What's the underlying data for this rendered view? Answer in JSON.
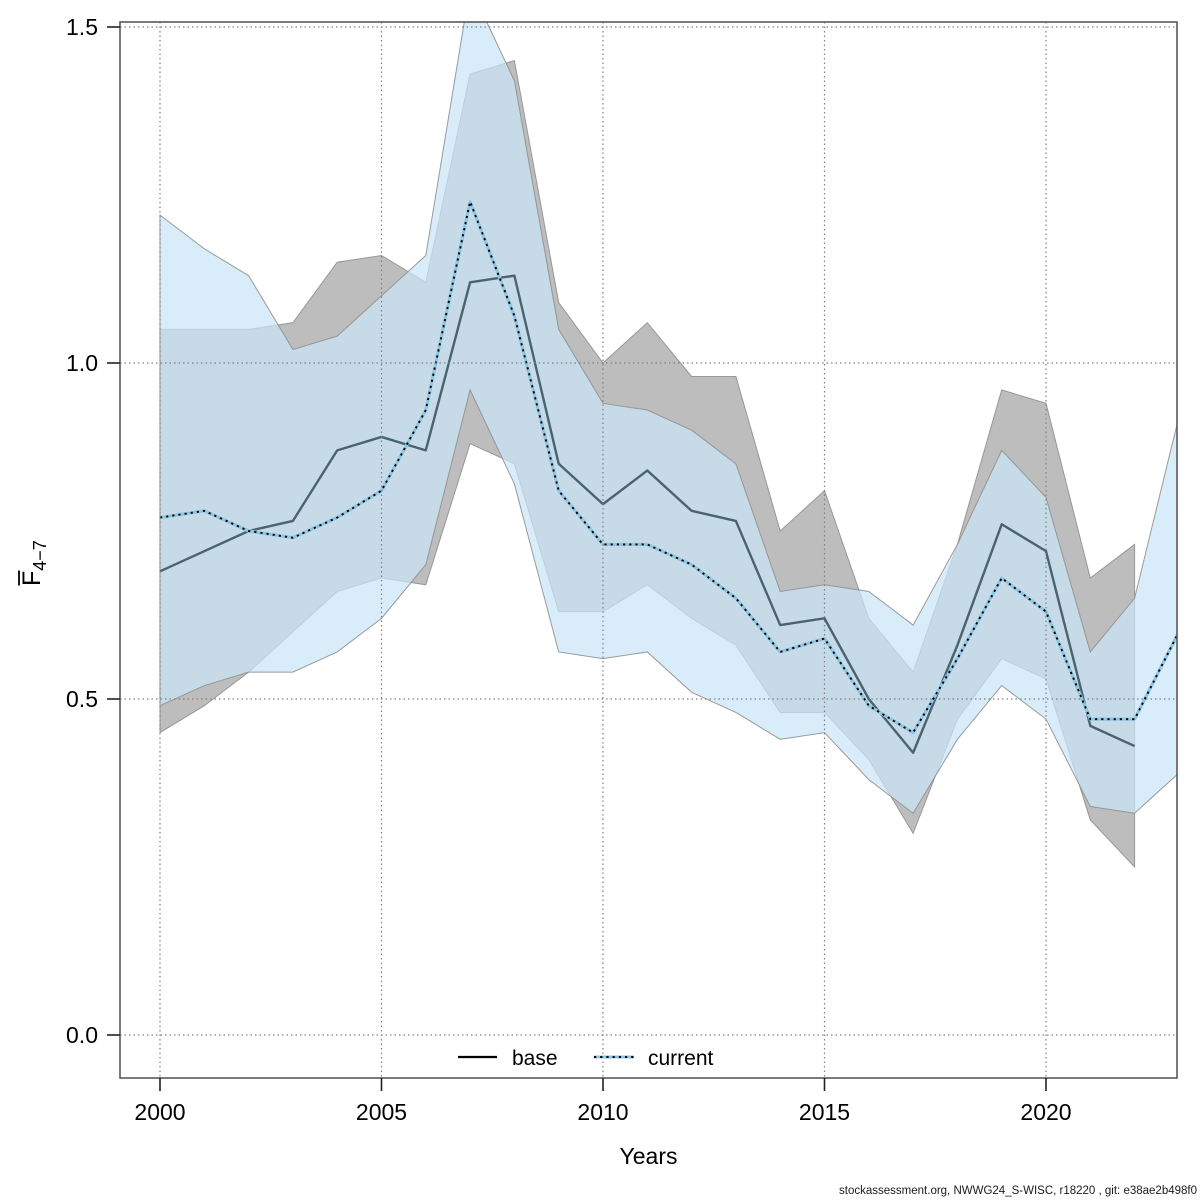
{
  "chart_data": {
    "type": "line",
    "title": "",
    "xlabel": "Years",
    "ylabel": {
      "base_char": "F",
      "overline": true,
      "subscript": "4−7"
    },
    "xlim": [
      2000,
      2023
    ],
    "ylim": [
      0.0,
      1.5
    ],
    "grid": true,
    "x_ticks": [
      2000,
      2005,
      2010,
      2015,
      2020
    ],
    "y_ticks": [
      0.0,
      0.5,
      1.0,
      1.5
    ],
    "y_tick_labels": [
      "0.0",
      "0.5",
      "1.0",
      "1.5"
    ],
    "x": [
      2000,
      2001,
      2002,
      2003,
      2004,
      2005,
      2006,
      2007,
      2008,
      2009,
      2010,
      2011,
      2012,
      2013,
      2014,
      2015,
      2016,
      2017,
      2018,
      2019,
      2020,
      2021,
      2022,
      2023
    ],
    "series": [
      {
        "name": "base",
        "line_style": "solid",
        "line_color": "#4a646f",
        "legend_line_color": "#000000",
        "band_color": "#bdbdbd",
        "band_opacity": 1.0,
        "values": [
          0.69,
          0.72,
          0.75,
          0.765,
          0.87,
          0.89,
          0.87,
          1.12,
          1.13,
          0.85,
          0.79,
          0.84,
          0.78,
          0.765,
          0.61,
          0.62,
          0.5,
          0.42,
          0.58,
          0.76,
          0.72,
          0.46,
          0.43,
          null
        ],
        "lower": [
          0.45,
          0.49,
          0.54,
          0.6,
          0.66,
          0.68,
          0.67,
          0.88,
          0.85,
          0.63,
          0.63,
          0.67,
          0.62,
          0.58,
          0.48,
          0.48,
          0.41,
          0.3,
          0.47,
          0.56,
          0.53,
          0.32,
          0.25,
          null
        ],
        "upper": [
          1.05,
          1.05,
          1.05,
          1.06,
          1.15,
          1.16,
          1.12,
          1.43,
          1.45,
          1.09,
          1.0,
          1.06,
          0.98,
          0.98,
          0.75,
          0.81,
          0.62,
          0.54,
          0.73,
          0.96,
          0.94,
          0.68,
          0.73,
          null
        ]
      },
      {
        "name": "current",
        "line_style": "dotted",
        "line_color": "#000000",
        "underlay_color": "#8ec6e3",
        "band_color": "#c9e6f6",
        "band_opacity": 0.72,
        "values": [
          0.77,
          0.78,
          0.75,
          0.74,
          0.77,
          0.81,
          0.93,
          1.24,
          1.07,
          0.81,
          0.73,
          0.73,
          0.7,
          0.65,
          0.57,
          0.59,
          0.49,
          0.45,
          0.56,
          0.68,
          0.63,
          0.47,
          0.47,
          0.6
        ],
        "lower": [
          0.49,
          0.52,
          0.54,
          0.54,
          0.57,
          0.62,
          0.7,
          0.96,
          0.82,
          0.57,
          0.56,
          0.57,
          0.51,
          0.48,
          0.44,
          0.45,
          0.38,
          0.33,
          0.44,
          0.52,
          0.47,
          0.34,
          0.33,
          0.39
        ],
        "upper": [
          1.22,
          1.17,
          1.13,
          1.02,
          1.04,
          1.1,
          1.16,
          1.56,
          1.42,
          1.05,
          0.94,
          0.93,
          0.9,
          0.85,
          0.66,
          0.67,
          0.66,
          0.61,
          0.73,
          0.87,
          0.8,
          0.57,
          0.65,
          0.92
        ]
      }
    ],
    "legend": {
      "position": "bottom-center",
      "items": [
        {
          "label": "base"
        },
        {
          "label": "current"
        }
      ]
    },
    "footer": "stockassessment.org, NWWG24_S-WISC, r18220 , git: e38ae2b498f0",
    "colors": {
      "grid": "#808080",
      "box": "#5a5a5a",
      "tick": "#222222",
      "text": "#000000",
      "band_edge": "#909090"
    }
  }
}
